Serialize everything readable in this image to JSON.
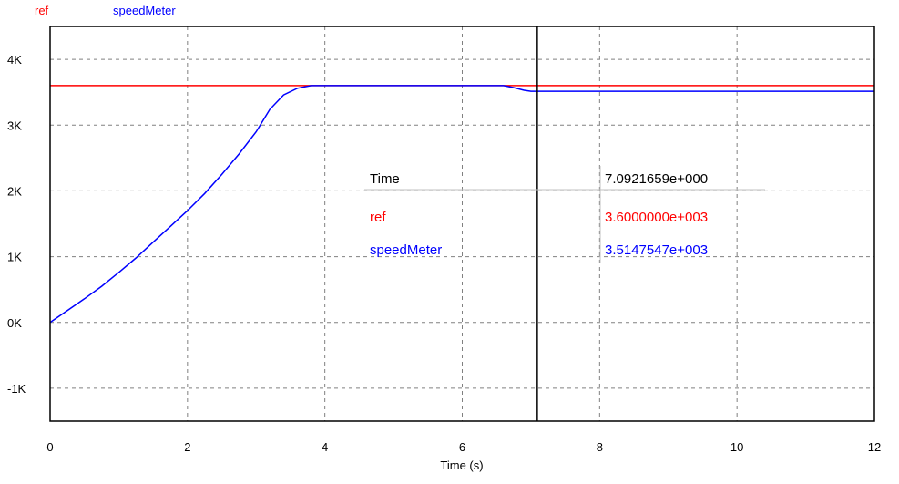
{
  "chart_data": {
    "type": "line",
    "xlabel": "Time (s)",
    "ylabel": "",
    "xlim": [
      0,
      12
    ],
    "ylim": [
      -1500,
      4500
    ],
    "x_ticks": [
      0,
      2,
      4,
      6,
      8,
      10,
      12
    ],
    "x_tick_labels": [
      "0",
      "2",
      "4",
      "6",
      "8",
      "10",
      "12"
    ],
    "y_ticks": [
      -1000,
      0,
      1000,
      2000,
      3000,
      4000
    ],
    "y_tick_labels": [
      "-1K",
      "0K",
      "1K",
      "2K",
      "3K",
      "4K"
    ],
    "grid": true,
    "legend_position": "top-left",
    "series": [
      {
        "name": "ref",
        "color": "#ff0000",
        "x": [
          0,
          12
        ],
        "y": [
          3600,
          3600
        ]
      },
      {
        "name": "speedMeter",
        "color": "#0000ff",
        "x": [
          0,
          0.25,
          0.5,
          0.75,
          1.0,
          1.25,
          1.5,
          1.75,
          2.0,
          2.25,
          2.5,
          2.75,
          3.0,
          3.2,
          3.4,
          3.6,
          3.8,
          4.0,
          5.0,
          6.0,
          6.6,
          6.75,
          6.9,
          7.0,
          7.1,
          8.0,
          10.0,
          12.0
        ],
        "y": [
          0,
          180,
          360,
          550,
          760,
          980,
          1220,
          1460,
          1700,
          1960,
          2250,
          2560,
          2900,
          3240,
          3460,
          3560,
          3600,
          3600,
          3600,
          3600,
          3600,
          3570,
          3530,
          3515,
          3515,
          3515,
          3515,
          3515
        ]
      }
    ],
    "cursor": {
      "x": 7.0921659
    },
    "readout": {
      "rows": [
        {
          "label": "Time",
          "value": "7.0921659e+000",
          "color": "#000000"
        },
        {
          "label": "ref",
          "value": "3.6000000e+003",
          "color": "#ff0000"
        },
        {
          "label": "speedMeter",
          "value": "3.5147547e+003",
          "color": "#0000ff"
        }
      ]
    },
    "colors": {
      "grid": "#808080",
      "axis": "#000000",
      "readout_divider": "#c0c0c0"
    }
  }
}
